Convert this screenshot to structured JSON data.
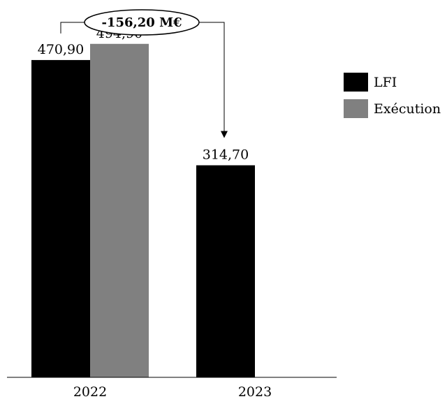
{
  "chart_data": {
    "type": "bar",
    "categories": [
      "2022",
      "2023"
    ],
    "series": [
      {
        "name": "LFI",
        "color": "#000000",
        "values": [
          470.9,
          314.7
        ],
        "labels": [
          "470,90",
          "314,70"
        ]
      },
      {
        "name": "Exécution",
        "color": "#808080",
        "values": [
          494.9,
          null
        ],
        "labels": [
          "494,90",
          ""
        ]
      }
    ],
    "annotation": {
      "text": "-156,20 M€",
      "from": "2022 LFI",
      "to": "2023 LFI"
    },
    "legend_position": "right",
    "ylim": [
      0,
      560
    ],
    "yaxis_visible": false,
    "grid": false
  }
}
